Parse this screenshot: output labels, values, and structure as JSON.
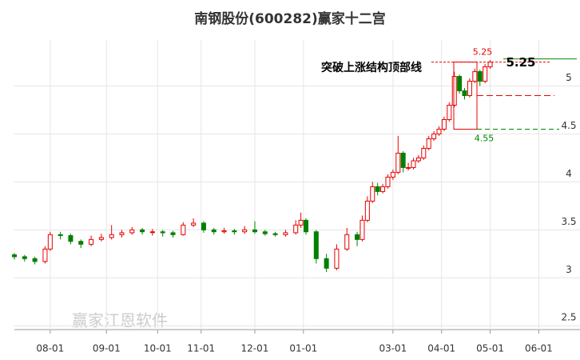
{
  "chart_data": {
    "type": "candlestick",
    "title": "南钢股份(600282)赢家十二宫",
    "watermark": "赢家江恩软件",
    "annotation": "突破上涨结构顶部线",
    "up_color": "#e60000",
    "down_color": "#008000",
    "x": [
      0,
      4,
      8,
      12,
      14,
      18,
      22,
      26,
      30,
      34,
      38,
      42,
      46,
      50,
      54,
      58,
      62,
      66,
      70,
      74,
      78,
      82,
      86,
      90,
      94,
      98,
      102,
      106,
      110,
      112,
      114,
      118,
      122,
      126,
      130,
      134,
      136,
      138,
      140,
      142,
      144,
      146,
      148,
      150,
      152,
      154,
      156,
      158,
      160,
      162,
      164,
      166,
      168,
      170,
      172,
      174,
      176,
      178,
      180,
      182,
      184,
      186
    ],
    "open": [
      3.24,
      3.22,
      3.2,
      3.17,
      3.3,
      3.45,
      3.44,
      3.38,
      3.35,
      3.4,
      3.42,
      3.45,
      3.47,
      3.5,
      3.48,
      3.48,
      3.47,
      3.45,
      3.55,
      3.57,
      3.5,
      3.48,
      3.49,
      3.48,
      3.5,
      3.48,
      3.46,
      3.45,
      3.47,
      3.55,
      3.6,
      3.48,
      3.2,
      3.1,
      3.3,
      3.45,
      3.4,
      3.6,
      3.8,
      3.95,
      3.9,
      3.95,
      4.05,
      4.1,
      4.3,
      4.15,
      4.15,
      4.22,
      4.25,
      4.35,
      4.45,
      4.5,
      4.55,
      4.65,
      4.8,
      5.1,
      4.95,
      4.9,
      5.05,
      5.15,
      5.05,
      5.2
    ],
    "high": [
      3.26,
      3.24,
      3.22,
      3.33,
      3.48,
      3.48,
      3.46,
      3.4,
      3.44,
      3.46,
      3.55,
      3.5,
      3.53,
      3.52,
      3.51,
      3.5,
      3.49,
      3.58,
      3.62,
      3.59,
      3.52,
      3.52,
      3.51,
      3.54,
      3.59,
      3.5,
      3.48,
      3.5,
      3.6,
      3.68,
      3.62,
      3.5,
      3.25,
      3.35,
      3.52,
      3.48,
      3.65,
      3.85,
      4.0,
      3.99,
      3.98,
      4.08,
      4.13,
      4.48,
      4.32,
      4.2,
      4.25,
      4.28,
      4.38,
      4.48,
      4.53,
      4.58,
      4.68,
      4.83,
      5.15,
      5.12,
      4.98,
      5.08,
      5.18,
      5.17,
      5.23,
      5.27
    ],
    "low": [
      3.19,
      3.17,
      3.14,
      3.15,
      3.28,
      3.4,
      3.35,
      3.31,
      3.33,
      3.38,
      3.4,
      3.42,
      3.45,
      3.45,
      3.44,
      3.43,
      3.42,
      3.44,
      3.53,
      3.47,
      3.45,
      3.46,
      3.45,
      3.46,
      3.46,
      3.44,
      3.43,
      3.43,
      3.45,
      3.52,
      3.45,
      3.15,
      3.06,
      3.08,
      3.28,
      3.33,
      3.38,
      3.58,
      3.78,
      3.86,
      3.88,
      3.93,
      4.02,
      4.08,
      4.1,
      4.12,
      4.13,
      4.2,
      4.23,
      4.33,
      4.43,
      4.48,
      4.53,
      4.63,
      4.78,
      4.92,
      4.86,
      4.88,
      5.03,
      5.0,
      5.03,
      5.18
    ],
    "close": [
      3.22,
      3.2,
      3.17,
      3.3,
      3.45,
      3.44,
      3.38,
      3.35,
      3.4,
      3.42,
      3.45,
      3.47,
      3.5,
      3.48,
      3.48,
      3.47,
      3.45,
      3.55,
      3.57,
      3.5,
      3.48,
      3.49,
      3.48,
      3.5,
      3.48,
      3.46,
      3.45,
      3.47,
      3.55,
      3.6,
      3.48,
      3.2,
      3.1,
      3.3,
      3.45,
      3.4,
      3.6,
      3.8,
      3.95,
      3.9,
      3.95,
      4.05,
      4.1,
      4.3,
      4.15,
      4.15,
      4.22,
      4.25,
      4.35,
      4.45,
      4.5,
      4.55,
      4.65,
      4.8,
      5.1,
      4.95,
      4.9,
      5.05,
      5.15,
      5.05,
      5.2,
      5.25
    ],
    "top_level": 5.25,
    "bottom_level": 4.55,
    "mid_level": 4.9,
    "last_price": 5.25,
    "xlim": [
      0,
      213
    ],
    "ylim": [
      2.46,
      5.48
    ],
    "xticks": [
      {
        "value": 14,
        "label": "08-01"
      },
      {
        "value": 36,
        "label": "09-01"
      },
      {
        "value": 56,
        "label": "10-01"
      },
      {
        "value": 73,
        "label": "11-01"
      },
      {
        "value": 94,
        "label": "12-01"
      },
      {
        "value": 113,
        "label": "01-01"
      },
      {
        "value": 148,
        "label": "03-01"
      },
      {
        "value": 167,
        "label": "04-01"
      },
      {
        "value": 186,
        "label": "05-01"
      },
      {
        "value": 205,
        "label": "06-01"
      }
    ],
    "yticks": [
      2.5,
      3,
      3.5,
      4,
      4.5,
      5
    ],
    "grid": true
  }
}
